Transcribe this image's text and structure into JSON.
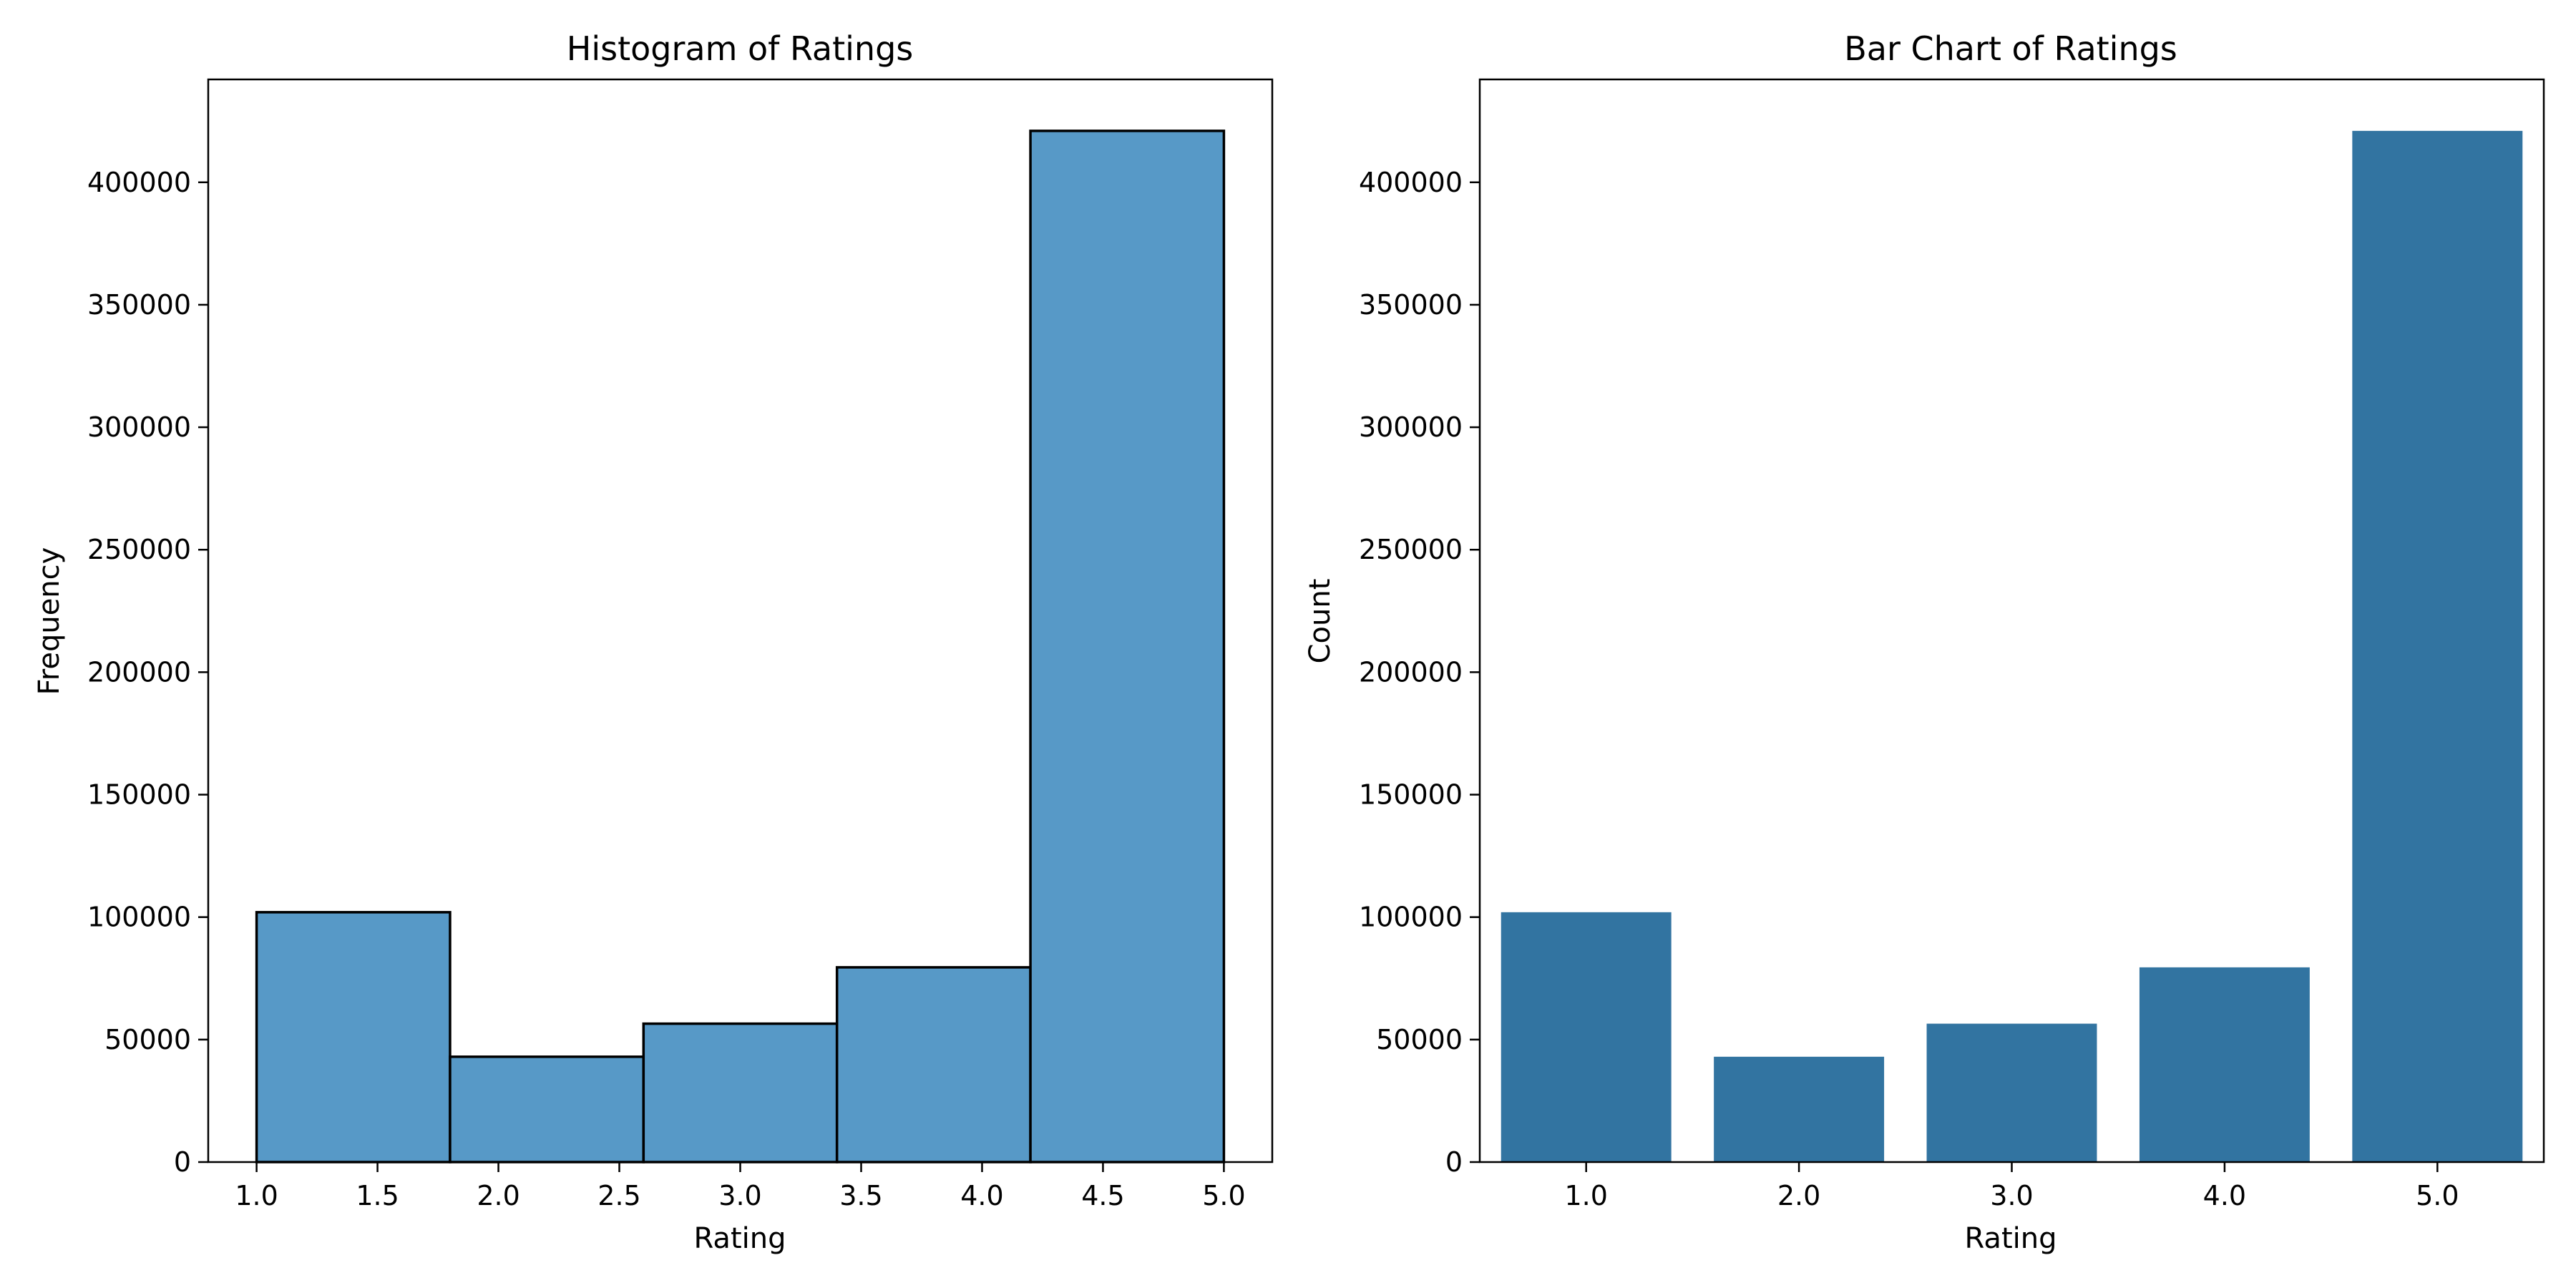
{
  "chart_data": [
    {
      "type": "bar",
      "subtype": "histogram",
      "title": "Histogram of Ratings",
      "xlabel": "Rating",
      "ylabel": "Frequency",
      "bins": [
        {
          "start": 1.0,
          "end": 1.8,
          "value": 102000
        },
        {
          "start": 1.8,
          "end": 2.6,
          "value": 43000
        },
        {
          "start": 2.6,
          "end": 3.4,
          "value": 56500
        },
        {
          "start": 3.4,
          "end": 4.2,
          "value": 79500
        },
        {
          "start": 4.2,
          "end": 5.0,
          "value": 421000
        }
      ],
      "xlim": [
        0.8,
        5.2
      ],
      "ylim": [
        0,
        442000
      ],
      "xticks": [
        "1.0",
        "1.5",
        "2.0",
        "2.5",
        "3.0",
        "3.5",
        "4.0",
        "4.5",
        "5.0"
      ],
      "yticks": [
        "0",
        "50000",
        "100000",
        "150000",
        "200000",
        "250000",
        "300000",
        "350000",
        "400000"
      ],
      "color": "#5799c7",
      "edgecolor": "#000000",
      "grid": false
    },
    {
      "type": "bar",
      "title": "Bar Chart of Ratings",
      "xlabel": "Rating",
      "ylabel": "Count",
      "categories": [
        "1.0",
        "2.0",
        "3.0",
        "4.0",
        "5.0"
      ],
      "values": [
        102000,
        43000,
        56500,
        79500,
        421000
      ],
      "ylim": [
        0,
        442000
      ],
      "yticks": [
        "0",
        "50000",
        "100000",
        "150000",
        "200000",
        "250000",
        "300000",
        "350000",
        "400000"
      ],
      "color": "#3274a1",
      "grid": false
    }
  ]
}
